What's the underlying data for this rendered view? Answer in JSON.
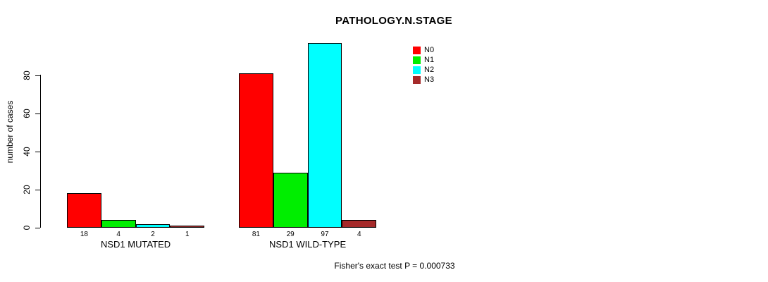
{
  "chart_data": {
    "type": "bar",
    "title": "PATHOLOGY.N.STAGE",
    "ylabel": "number of cases",
    "xlabel": "",
    "ylim": [
      0,
      80
    ],
    "yticks": [
      0,
      20,
      40,
      60,
      80
    ],
    "grid": false,
    "legend_position": "top-right",
    "series_labels": [
      "N0",
      "N1",
      "N2",
      "N3"
    ],
    "colors": [
      "#ff0000",
      "#00ee00",
      "#00ffff",
      "#a52a2a"
    ],
    "groups": [
      {
        "label": "NSD1 MUTATED",
        "values": [
          18,
          4,
          2,
          1
        ]
      },
      {
        "label": "NSD1 WILD-TYPE",
        "values": [
          81,
          29,
          97,
          4
        ]
      }
    ],
    "bar_value_labels_shown": true,
    "annotation": "Fisher's exact test P = 0.000733"
  }
}
